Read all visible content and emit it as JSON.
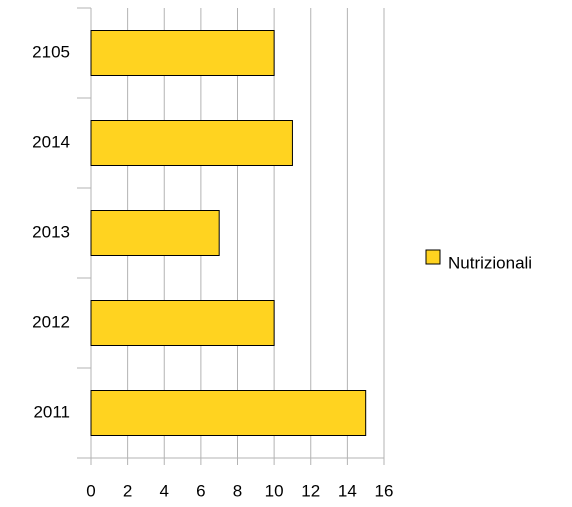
{
  "chart_data": {
    "type": "bar",
    "orientation": "horizontal",
    "categories": [
      "2105",
      "2014",
      "2013",
      "2012",
      "2011"
    ],
    "series": [
      {
        "name": "Nutrizionali",
        "color": "#ffd320",
        "values": [
          10,
          11,
          7,
          10,
          15
        ]
      }
    ],
    "xlim": [
      0,
      16
    ],
    "xticks": [
      0,
      2,
      4,
      6,
      8,
      10,
      12,
      14,
      16
    ],
    "grid": true,
    "legend": "right"
  }
}
